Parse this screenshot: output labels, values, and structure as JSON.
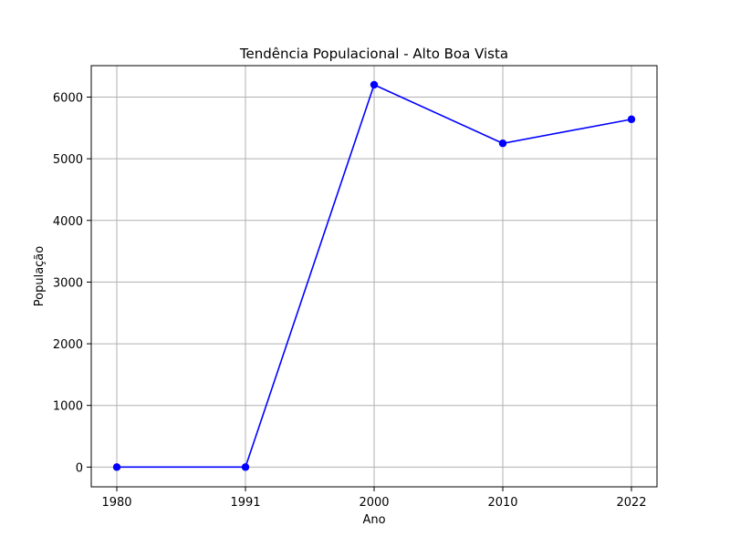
{
  "chart_data": {
    "type": "line",
    "title": "Tendência Populacional - Alto Boa Vista",
    "xlabel": "Ano",
    "ylabel": "População",
    "categories": [
      "1980",
      "1991",
      "2000",
      "2010",
      "2022"
    ],
    "series": [
      {
        "values": [
          0,
          0,
          6200,
          5250,
          5640
        ],
        "color": "#0000ff",
        "marker": "circle"
      }
    ],
    "ylim": [
      -320,
      6510
    ],
    "yticks": [
      0,
      1000,
      2000,
      3000,
      4000,
      5000,
      6000
    ],
    "grid": true,
    "legend": "none"
  }
}
